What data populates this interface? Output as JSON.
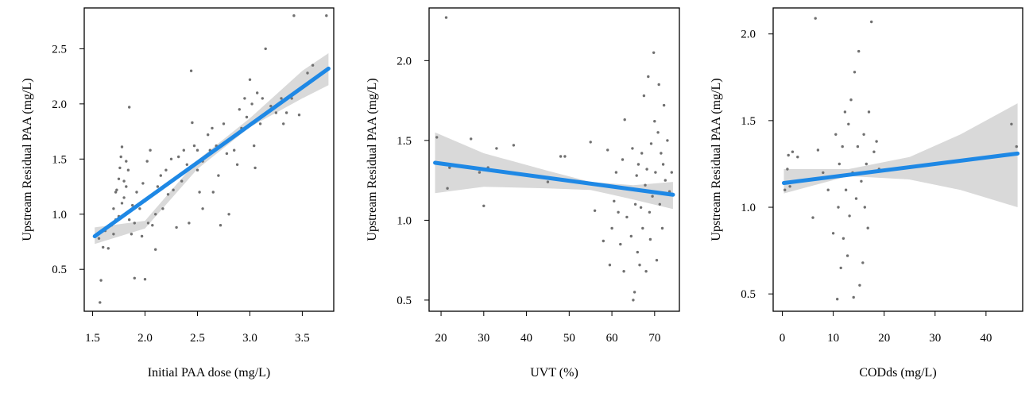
{
  "chart_data": [
    {
      "type": "scatter",
      "title": "",
      "xlabel": "Initial PAA dose (mg/L)",
      "ylabel": "Upstream Residual PAA (mg/L)",
      "xlim": [
        1.42,
        3.8
      ],
      "ylim": [
        0.12,
        2.87
      ],
      "xticks": [
        "1.5",
        "2.0",
        "2.5",
        "3.0",
        "3.5"
      ],
      "yticks": [
        "0.5",
        "1.0",
        "1.5",
        "2.0",
        "2.5"
      ],
      "grid": false,
      "legend": "none",
      "point_color": "#707070",
      "fit_color": "#1E88E5",
      "band_color": "#D9D9D9",
      "points": [
        [
          1.57,
          0.2
        ],
        [
          1.58,
          0.4
        ],
        [
          1.56,
          0.78
        ],
        [
          1.6,
          0.7
        ],
        [
          1.65,
          0.69
        ],
        [
          1.62,
          0.85
        ],
        [
          1.68,
          0.9
        ],
        [
          1.7,
          0.82
        ],
        [
          1.72,
          0.95
        ],
        [
          1.7,
          1.05
        ],
        [
          1.72,
          1.2
        ],
        [
          1.73,
          1.22
        ],
        [
          1.75,
          1.32
        ],
        [
          1.76,
          1.42
        ],
        [
          1.77,
          1.52
        ],
        [
          1.78,
          1.61
        ],
        [
          1.75,
          0.98
        ],
        [
          1.78,
          1.1
        ],
        [
          1.8,
          1.15
        ],
        [
          1.8,
          1.3
        ],
        [
          1.82,
          1.25
        ],
        [
          1.82,
          1.48
        ],
        [
          1.84,
          1.4
        ],
        [
          1.85,
          1.97
        ],
        [
          1.85,
          0.95
        ],
        [
          1.87,
          0.82
        ],
        [
          1.88,
          1.08
        ],
        [
          1.9,
          0.42
        ],
        [
          1.9,
          0.92
        ],
        [
          1.92,
          1.2
        ],
        [
          1.95,
          1.05
        ],
        [
          1.97,
          0.8
        ],
        [
          1.98,
          1.28
        ],
        [
          2.0,
          0.41
        ],
        [
          2.0,
          1.12
        ],
        [
          2.02,
          1.48
        ],
        [
          2.03,
          0.92
        ],
        [
          2.05,
          1.58
        ],
        [
          2.07,
          0.9
        ],
        [
          2.1,
          1.0
        ],
        [
          2.1,
          0.68
        ],
        [
          2.12,
          1.25
        ],
        [
          2.15,
          1.35
        ],
        [
          2.17,
          1.05
        ],
        [
          2.2,
          1.4
        ],
        [
          2.22,
          1.18
        ],
        [
          2.25,
          1.5
        ],
        [
          2.27,
          1.22
        ],
        [
          2.3,
          0.88
        ],
        [
          2.32,
          1.52
        ],
        [
          2.35,
          1.3
        ],
        [
          2.37,
          1.58
        ],
        [
          2.4,
          1.45
        ],
        [
          2.42,
          0.92
        ],
        [
          2.44,
          2.3
        ],
        [
          2.45,
          1.83
        ],
        [
          2.47,
          1.62
        ],
        [
          2.5,
          1.4
        ],
        [
          2.5,
          1.58
        ],
        [
          2.52,
          1.2
        ],
        [
          2.55,
          1.05
        ],
        [
          2.55,
          1.48
        ],
        [
          2.58,
          1.52
        ],
        [
          2.6,
          1.72
        ],
        [
          2.62,
          1.58
        ],
        [
          2.64,
          1.78
        ],
        [
          2.65,
          1.2
        ],
        [
          2.68,
          1.62
        ],
        [
          2.7,
          1.35
        ],
        [
          2.72,
          0.9
        ],
        [
          2.75,
          1.82
        ],
        [
          2.78,
          1.55
        ],
        [
          2.8,
          1.0
        ],
        [
          2.82,
          1.68
        ],
        [
          2.85,
          1.58
        ],
        [
          2.88,
          1.45
        ],
        [
          2.9,
          1.95
        ],
        [
          2.92,
          1.78
        ],
        [
          2.95,
          2.05
        ],
        [
          2.97,
          1.88
        ],
        [
          3.0,
          2.22
        ],
        [
          3.02,
          2.0
        ],
        [
          3.04,
          1.62
        ],
        [
          3.05,
          1.42
        ],
        [
          3.07,
          2.1
        ],
        [
          3.1,
          1.82
        ],
        [
          3.12,
          2.05
        ],
        [
          3.15,
          2.5
        ],
        [
          3.2,
          1.98
        ],
        [
          3.25,
          1.92
        ],
        [
          3.3,
          2.05
        ],
        [
          3.32,
          1.82
        ],
        [
          3.35,
          1.92
        ],
        [
          3.4,
          2.05
        ],
        [
          3.42,
          2.8
        ],
        [
          3.45,
          2.12
        ],
        [
          3.47,
          1.9
        ],
        [
          3.55,
          2.28
        ],
        [
          3.6,
          2.35
        ],
        [
          3.73,
          2.8
        ]
      ],
      "fit": {
        "x": [
          1.52,
          3.75
        ],
        "y": [
          0.8,
          2.32
        ]
      },
      "band": {
        "x": [
          1.52,
          2.0,
          2.5,
          3.0,
          3.5,
          3.75
        ],
        "lower": [
          0.73,
          0.87,
          1.41,
          1.79,
          2.05,
          2.17
        ],
        "upper": [
          0.88,
          0.94,
          1.49,
          1.87,
          2.3,
          2.46
        ]
      }
    },
    {
      "type": "scatter",
      "title": "",
      "xlabel": "UVT (%)",
      "ylabel": "Upstream Residual PAA (mg/L)",
      "xlim": [
        17.2,
        75.8
      ],
      "ylim": [
        0.43,
        2.33
      ],
      "xticks": [
        "20",
        "30",
        "40",
        "50",
        "60",
        "70"
      ],
      "yticks": [
        "0.5",
        "1.0",
        "1.5",
        "2.0"
      ],
      "grid": false,
      "legend": "none",
      "point_color": "#707070",
      "fit_color": "#1E88E5",
      "band_color": "#D9D9D9",
      "points": [
        [
          19,
          1.52
        ],
        [
          21.2,
          2.27
        ],
        [
          21.5,
          1.2
        ],
        [
          22,
          1.33
        ],
        [
          27,
          1.51
        ],
        [
          29,
          1.3
        ],
        [
          30,
          1.09
        ],
        [
          31,
          1.33
        ],
        [
          33,
          1.45
        ],
        [
          37,
          1.47
        ],
        [
          45,
          1.24
        ],
        [
          48,
          1.4
        ],
        [
          49,
          1.4
        ],
        [
          55,
          1.49
        ],
        [
          56,
          1.06
        ],
        [
          58,
          0.87
        ],
        [
          59,
          1.44
        ],
        [
          59.5,
          0.72
        ],
        [
          60,
          0.95
        ],
        [
          60.5,
          1.12
        ],
        [
          61,
          1.3
        ],
        [
          61.5,
          1.05
        ],
        [
          62,
          0.85
        ],
        [
          62.5,
          1.38
        ],
        [
          62.8,
          0.68
        ],
        [
          63,
          1.63
        ],
        [
          63.5,
          1.02
        ],
        [
          64,
          1.2
        ],
        [
          64.5,
          0.9
        ],
        [
          64.8,
          1.45
        ],
        [
          65,
          0.5
        ],
        [
          65.3,
          0.55
        ],
        [
          65.5,
          1.1
        ],
        [
          65.8,
          1.28
        ],
        [
          66,
          0.8
        ],
        [
          66.2,
          1.35
        ],
        [
          66.5,
          0.72
        ],
        [
          66.8,
          1.08
        ],
        [
          67,
          1.42
        ],
        [
          67.2,
          0.95
        ],
        [
          67.5,
          1.78
        ],
        [
          67.8,
          1.22
        ],
        [
          68,
          0.68
        ],
        [
          68.2,
          1.32
        ],
        [
          68.5,
          1.9
        ],
        [
          68.8,
          1.05
        ],
        [
          69,
          0.88
        ],
        [
          69.2,
          1.48
        ],
        [
          69.5,
          1.15
        ],
        [
          69.8,
          2.05
        ],
        [
          70,
          1.62
        ],
        [
          70.2,
          1.3
        ],
        [
          70.5,
          0.75
        ],
        [
          70.8,
          1.55
        ],
        [
          71,
          1.85
        ],
        [
          71.2,
          1.1
        ],
        [
          71.5,
          1.42
        ],
        [
          71.8,
          0.95
        ],
        [
          72,
          1.35
        ],
        [
          72.2,
          1.72
        ],
        [
          72.5,
          1.25
        ],
        [
          73,
          1.5
        ],
        [
          73.5,
          1.18
        ],
        [
          74,
          1.3
        ]
      ],
      "fit": {
        "x": [
          18.6,
          74.3
        ],
        "y": [
          1.36,
          1.16
        ]
      },
      "band": {
        "x": [
          18.6,
          30,
          45,
          55,
          65,
          74.3
        ],
        "lower": [
          1.17,
          1.21,
          1.2,
          1.19,
          1.13,
          1.07
        ],
        "upper": [
          1.55,
          1.42,
          1.31,
          1.24,
          1.22,
          1.24
        ]
      }
    },
    {
      "type": "scatter",
      "title": "",
      "xlabel": "CODds (mg/L)",
      "ylabel": "Upstream Residual PAA (mg/L)",
      "xlim": [
        -1.8,
        47.2
      ],
      "ylim": [
        0.4,
        2.15
      ],
      "xticks": [
        "0",
        "10",
        "20",
        "30",
        "40"
      ],
      "yticks": [
        "0.5",
        "1.0",
        "1.5",
        "2.0"
      ],
      "grid": false,
      "legend": "none",
      "point_color": "#707070",
      "fit_color": "#1E88E5",
      "band_color": "#D9D9D9",
      "points": [
        [
          0.5,
          1.1
        ],
        [
          1,
          1.22
        ],
        [
          1.2,
          1.3
        ],
        [
          1.5,
          1.12
        ],
        [
          2,
          1.32
        ],
        [
          3,
          1.29
        ],
        [
          6,
          0.94
        ],
        [
          6.5,
          2.09
        ],
        [
          7,
          1.33
        ],
        [
          8,
          1.2
        ],
        [
          9,
          1.1
        ],
        [
          10,
          0.85
        ],
        [
          10.5,
          1.42
        ],
        [
          10.8,
          0.47
        ],
        [
          11,
          1.0
        ],
        [
          11.2,
          1.25
        ],
        [
          11.5,
          0.65
        ],
        [
          11.8,
          1.35
        ],
        [
          12,
          0.82
        ],
        [
          12.3,
          1.55
        ],
        [
          12.5,
          1.1
        ],
        [
          12.8,
          0.72
        ],
        [
          13,
          1.48
        ],
        [
          13.2,
          0.95
        ],
        [
          13.5,
          1.62
        ],
        [
          13.8,
          1.2
        ],
        [
          14,
          0.48
        ],
        [
          14.2,
          1.78
        ],
        [
          14.5,
          1.05
        ],
        [
          14.8,
          1.35
        ],
        [
          15,
          1.9
        ],
        [
          15.2,
          0.55
        ],
        [
          15.5,
          1.15
        ],
        [
          15.8,
          0.68
        ],
        [
          16,
          1.42
        ],
        [
          16.2,
          1.0
        ],
        [
          16.5,
          1.25
        ],
        [
          16.8,
          0.88
        ],
        [
          17,
          1.55
        ],
        [
          17.5,
          2.07
        ],
        [
          18,
          1.32
        ],
        [
          18.5,
          1.38
        ],
        [
          19,
          1.22
        ],
        [
          45,
          1.48
        ],
        [
          46,
          1.35
        ]
      ],
      "fit": {
        "x": [
          0.3,
          46.2
        ],
        "y": [
          1.14,
          1.31
        ]
      },
      "band": {
        "x": [
          0.3,
          13,
          25,
          35,
          46.2
        ],
        "lower": [
          1.08,
          1.18,
          1.16,
          1.1,
          1.0
        ],
        "upper": [
          1.22,
          1.22,
          1.29,
          1.42,
          1.6
        ]
      }
    }
  ]
}
